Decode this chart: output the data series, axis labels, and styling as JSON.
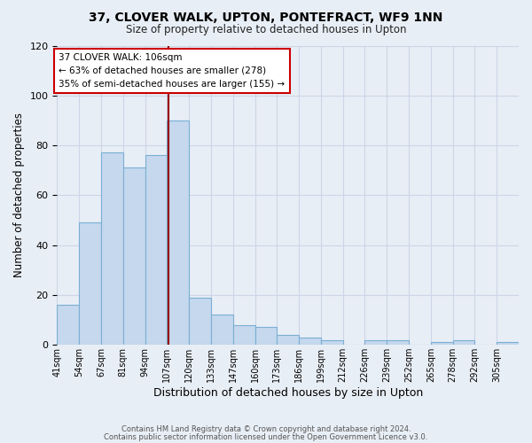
{
  "title": "37, CLOVER WALK, UPTON, PONTEFRACT, WF9 1NN",
  "subtitle": "Size of property relative to detached houses in Upton",
  "xlabel": "Distribution of detached houses by size in Upton",
  "ylabel": "Number of detached properties",
  "bin_labels": [
    "41sqm",
    "54sqm",
    "67sqm",
    "81sqm",
    "94sqm",
    "107sqm",
    "120sqm",
    "133sqm",
    "147sqm",
    "160sqm",
    "173sqm",
    "186sqm",
    "199sqm",
    "212sqm",
    "226sqm",
    "239sqm",
    "252sqm",
    "265sqm",
    "278sqm",
    "292sqm",
    "305sqm"
  ],
  "bar_values": [
    16,
    49,
    77,
    71,
    76,
    90,
    19,
    12,
    8,
    7,
    4,
    3,
    2,
    0,
    2,
    2,
    0,
    1,
    2,
    0,
    1
  ],
  "bar_color": "#c5d8ed",
  "bar_edge_color": "#7aafd4",
  "highlight_line_color": "#990000",
  "annotation_text": "37 CLOVER WALK: 106sqm\n← 63% of detached houses are smaller (278)\n35% of semi-detached houses are larger (155) →",
  "annotation_box_color": "#ffffff",
  "annotation_box_edge_color": "#cc0000",
  "ylim": [
    0,
    120
  ],
  "yticks": [
    0,
    20,
    40,
    60,
    80,
    100,
    120
  ],
  "grid_color": "#ccd6e8",
  "bg_color": "#e8eef5",
  "footer_line1": "Contains HM Land Registry data © Crown copyright and database right 2024.",
  "footer_line2": "Contains public sector information licensed under the Open Government Licence v3.0."
}
